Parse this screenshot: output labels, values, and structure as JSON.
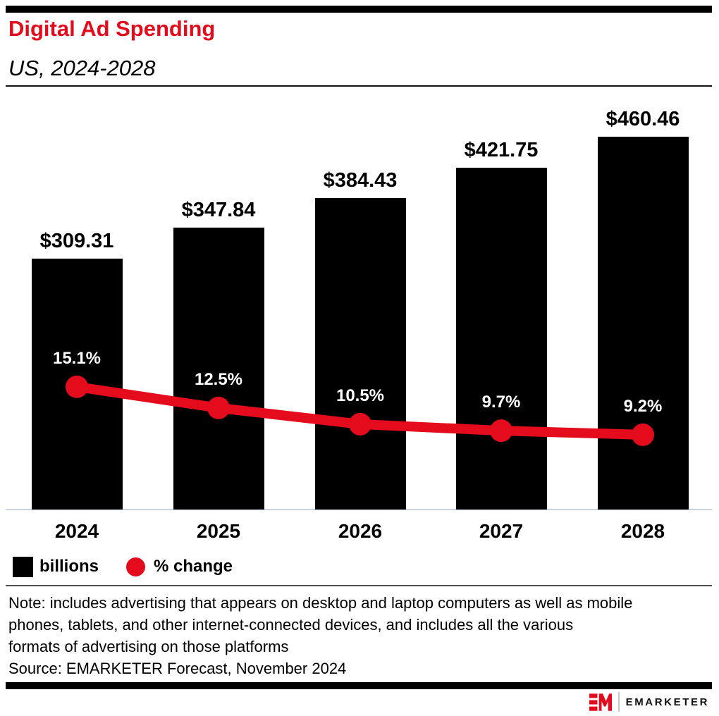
{
  "colors": {
    "red": "#e30b1c",
    "bar_black": "#000000",
    "axis_line": "#c8d1e0",
    "note_divider": "#4d4d4d",
    "logo_divider": "#c9c9c9"
  },
  "header": {
    "title": "Digital Ad Spending",
    "subtitle": "US, 2024-2028"
  },
  "chart_data": {
    "type": "bar",
    "categories": [
      "2024",
      "2025",
      "2026",
      "2027",
      "2028"
    ],
    "series": [
      {
        "name": "billions",
        "type": "bar",
        "color": "#000000",
        "values": [
          309.31,
          347.84,
          384.43,
          421.75,
          460.46
        ],
        "labels": [
          "$309.31",
          "$347.84",
          "$384.43",
          "$421.75",
          "$460.46"
        ]
      },
      {
        "name": "% change",
        "type": "line",
        "color": "#e30b1c",
        "values": [
          15.1,
          12.5,
          10.5,
          9.7,
          9.2
        ],
        "labels": [
          "15.1%",
          "12.5%",
          "10.5%",
          "9.7%",
          "9.2%"
        ]
      }
    ],
    "ylim": [
      0,
      500
    ],
    "grid": false,
    "value_labels": true,
    "legend_position": "bottom-left"
  },
  "legend": {
    "bar_label": "billions",
    "line_label": "% change"
  },
  "note": {
    "lines": [
      "Note: includes advertising that appears on desktop and laptop computers as well as mobile",
      "phones, tablets, and other internet-connected devices, and includes all the various",
      "formats of advertising on those platforms"
    ],
    "source": "Source: EMARKETER Forecast, November 2024"
  },
  "footer": {
    "brand": "EMARKETER"
  }
}
